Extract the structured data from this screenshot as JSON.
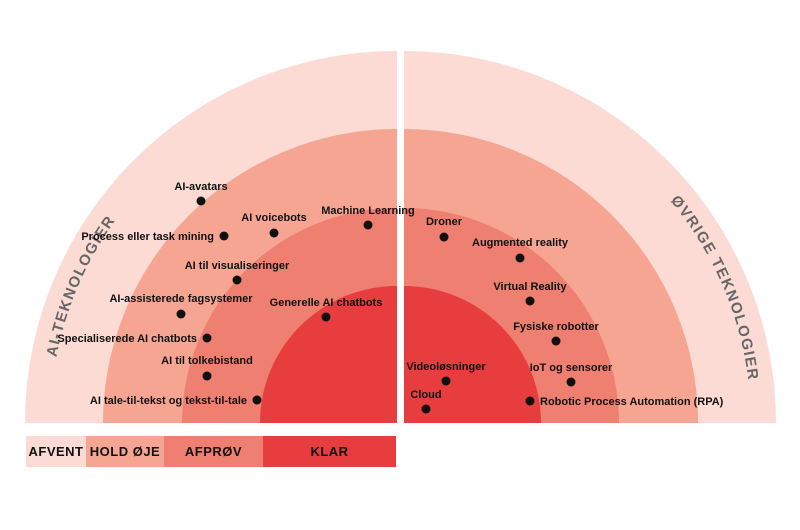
{
  "rings": [
    {
      "name": "AFVENT",
      "color": "#fbdbd3"
    },
    {
      "name": "HOLD ØJE",
      "color": "#f5a592"
    },
    {
      "name": "AFPRØV",
      "color": "#ef7f70"
    },
    {
      "name": "KLAR",
      "color": "#e73d3e"
    }
  ],
  "sections": {
    "left": "AI-TEKNOLOGIER",
    "right": "ØVRIGE TEKNOLOGIER"
  },
  "items": [
    {
      "label": "AI-avatars",
      "section": "left"
    },
    {
      "label": "AI voicebots",
      "section": "left"
    },
    {
      "label": "Machine Learning",
      "section": "left"
    },
    {
      "label": "Process eller task mining",
      "section": "left"
    },
    {
      "label": "AI til visualiseringer",
      "section": "left"
    },
    {
      "label": "AI-assisterede fagsystemer",
      "section": "left"
    },
    {
      "label": "Generelle AI chatbots",
      "section": "left"
    },
    {
      "label": "Specialiserede AI chatbots",
      "section": "left"
    },
    {
      "label": "AI til tolkebistand",
      "section": "left"
    },
    {
      "label": "AI tale-til-tekst og tekst-til-tale",
      "section": "left"
    },
    {
      "label": "Droner",
      "section": "right"
    },
    {
      "label": "Augmented reality",
      "section": "right"
    },
    {
      "label": "Virtual Reality",
      "section": "right"
    },
    {
      "label": "Fysiske robotter",
      "section": "right"
    },
    {
      "label": "Videoløsninger",
      "section": "right"
    },
    {
      "label": "IoT og sensorer",
      "section": "right"
    },
    {
      "label": "Cloud",
      "section": "right"
    },
    {
      "label": "Robotic Process Automation (RPA)",
      "section": "right"
    }
  ]
}
